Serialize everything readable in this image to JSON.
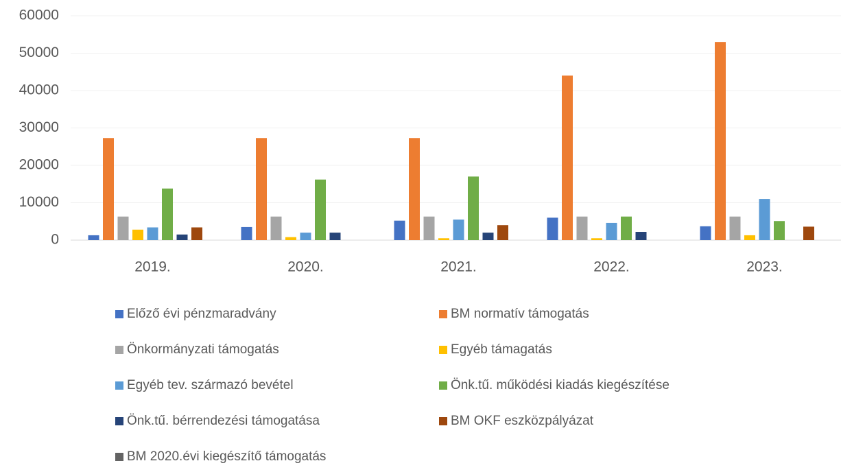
{
  "chart_data": {
    "type": "bar",
    "categories": [
      "2019.",
      "2020.",
      "2021.",
      "2022.",
      "2023."
    ],
    "series": [
      {
        "name": "Előző évi pénzmaradvány",
        "color": "#4472c4",
        "values": [
          1300,
          3500,
          5200,
          6000,
          3700
        ]
      },
      {
        "name": "BM normatív támogatás",
        "color": "#ed7d31",
        "values": [
          27300,
          27300,
          27300,
          44000,
          53000
        ]
      },
      {
        "name": "Önkormányzati támogatás",
        "color": "#a5a5a5",
        "values": [
          6300,
          6300,
          6300,
          6300,
          6300
        ]
      },
      {
        "name": "Egyéb támagatás",
        "color": "#ffc000",
        "values": [
          2800,
          800,
          500,
          500,
          1300
        ]
      },
      {
        "name": "Egyéb tev. származó bevétel",
        "color": "#5b9bd5",
        "values": [
          3400,
          2000,
          5500,
          4600,
          11000
        ]
      },
      {
        "name": "Önk.tű.  működési kiadás kiegészítése",
        "color": "#70ad47",
        "values": [
          13800,
          16200,
          17000,
          6300,
          5100
        ]
      },
      {
        "name": "Önk.tű. bérrendezési támogatása",
        "color": "#264478",
        "values": [
          1500,
          2000,
          2000,
          2200,
          0
        ]
      },
      {
        "name": "BM OKF eszközpályázat",
        "color": "#9e480e",
        "values": [
          3400,
          0,
          4000,
          0,
          3600
        ]
      },
      {
        "name": "BM 2020.évi kiegészítő támogatás",
        "color": "#636363",
        "values": [
          0,
          0,
          0,
          0,
          0
        ]
      }
    ],
    "ylim": [
      0,
      60000
    ],
    "yticks": [
      0,
      10000,
      20000,
      30000,
      40000,
      50000,
      60000
    ],
    "grid": true
  }
}
